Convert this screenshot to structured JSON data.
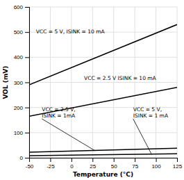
{
  "chart_data": {
    "type": "line",
    "xlabel": "Temperature (°C)",
    "ylabel": "VOL (mV)",
    "x": [
      -50,
      125
    ],
    "series": [
      {
        "color": "#000000",
        "values": [
          290,
          530
        ]
      },
      {
        "color": "#000000",
        "values": [
          165,
          280
        ]
      },
      {
        "color": "#000000",
        "values": [
          22,
          38
        ]
      },
      {
        "color": "#000000",
        "values": [
          8,
          16
        ]
      }
    ],
    "xlim": [
      -50,
      125
    ],
    "ylim": [
      0,
      600
    ],
    "xticks": [
      -50,
      -25,
      0,
      25,
      50,
      75,
      100,
      125
    ],
    "yticks": [
      0,
      100,
      200,
      300,
      400,
      500,
      600
    ],
    "grid": true,
    "annotations": [
      {
        "text": "VCC = 5 V, ISINK = 10 mA",
        "x": -42,
        "y": 490
      },
      {
        "text": "VCC = 2.5 V ISINK = 10 mA",
        "x": 15,
        "y": 303
      },
      {
        "text": "VCC = 2.5 V,\nISINK = 1mA",
        "x": -35,
        "y": 155,
        "point": [
          28,
          28
        ]
      },
      {
        "text": "VCC = 5 V,\nISINK = 1 mA",
        "x": 73,
        "y": 155,
        "point": [
          95,
          13
        ]
      }
    ]
  }
}
